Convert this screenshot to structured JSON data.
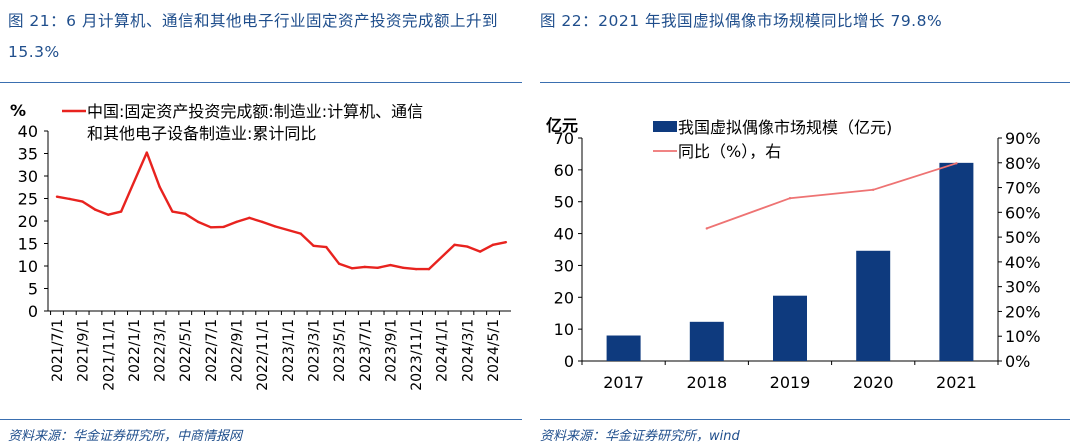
{
  "left_panel": {
    "title": "图 21：6 月计算机、通信和其他电子行业固定资产投资完成额上升到 15.3%",
    "source": "资料来源：华金证券研究所，中商情报网"
  },
  "right_panel": {
    "title": "图 22：2021 年我国虚拟偶像市场规模同比增长 79.8%",
    "source": "资料来源：华金证券研究所，wind"
  },
  "colors": {
    "title": "#1f4e8c",
    "rule": "#3a6fb0",
    "left_line": "#e8231f",
    "bars": "#0e3a7e",
    "right_line": "#ee7373"
  },
  "chart_data": [
    {
      "type": "line",
      "ylabel": "%",
      "ylim": [
        0,
        40
      ],
      "yticks": [
        "0",
        "5",
        "10",
        "15",
        "20",
        "25",
        "30",
        "35",
        "40"
      ],
      "xtick_labels": [
        "2021/7/1",
        "2021/9/1",
        "2021/11/1",
        "2022/1/1",
        "2022/3/1",
        "2022/5/1",
        "2022/7/1",
        "2022/9/1",
        "2022/11/1",
        "2023/1/1",
        "2023/3/1",
        "2023/5/1",
        "2023/7/1",
        "2023/9/1",
        "2023/11/1",
        "2024/1/1",
        "2024/3/1",
        "2024/5/1"
      ],
      "legend": [
        "中国:固定资产投资完成额:制造业:计算机、通信",
        "和其他电子设备制造业:累计同比"
      ],
      "legend_position": "top",
      "grid": false,
      "series": [
        {
          "name": "中国:固定资产投资完成额:制造业:计算机、通信和其他电子设备制造业:累计同比",
          "x": [
            "2021/7",
            "2021/8",
            "2021/9",
            "2021/10",
            "2021/11",
            "2021/12",
            "2022/2",
            "2022/3",
            "2022/4",
            "2022/5",
            "2022/6",
            "2022/7",
            "2022/8",
            "2022/9",
            "2022/10",
            "2022/11",
            "2022/12",
            "2023/2",
            "2023/3",
            "2023/4",
            "2023/5",
            "2023/6",
            "2023/7",
            "2023/8",
            "2023/9",
            "2023/10",
            "2023/11",
            "2023/12",
            "2024/2",
            "2024/3",
            "2024/4",
            "2024/5",
            "2024/6"
          ],
          "values": [
            25.4,
            24.9,
            24.3,
            22.5,
            21.4,
            22.1,
            35.2,
            27.6,
            22.1,
            21.6,
            19.8,
            18.6,
            18.7,
            19.8,
            20.7,
            19.8,
            18.8,
            17.2,
            14.5,
            14.2,
            10.5,
            9.5,
            9.8,
            9.6,
            10.2,
            9.6,
            9.3,
            9.3,
            14.7,
            14.3,
            13.2,
            14.7,
            15.3
          ]
        }
      ]
    },
    {
      "type": "bar",
      "categories": [
        "2017",
        "2018",
        "2019",
        "2020",
        "2021"
      ],
      "ylabel": "亿元",
      "ylim": [
        0,
        70
      ],
      "yticks": [
        "0",
        "10",
        "20",
        "30",
        "40",
        "50",
        "60",
        "70"
      ],
      "y2lim": [
        0,
        90
      ],
      "y2ticks": [
        "0%",
        "10%",
        "20%",
        "30%",
        "40%",
        "50%",
        "60%",
        "70%",
        "80%",
        "90%"
      ],
      "legend": [
        "我国虚拟偶像市场规模（亿元)",
        "同比（%），右"
      ],
      "legend_position": "top",
      "grid": false,
      "series": [
        {
          "name": "我国虚拟偶像市场规模（亿元)",
          "type": "bar",
          "axis": "left",
          "values": [
            8,
            12.3,
            20.5,
            34.6,
            62.2
          ]
        },
        {
          "name": "同比（%），右",
          "type": "line",
          "axis": "right",
          "values": [
            null,
            53.5,
            65.7,
            69.1,
            79.8
          ]
        }
      ]
    }
  ]
}
